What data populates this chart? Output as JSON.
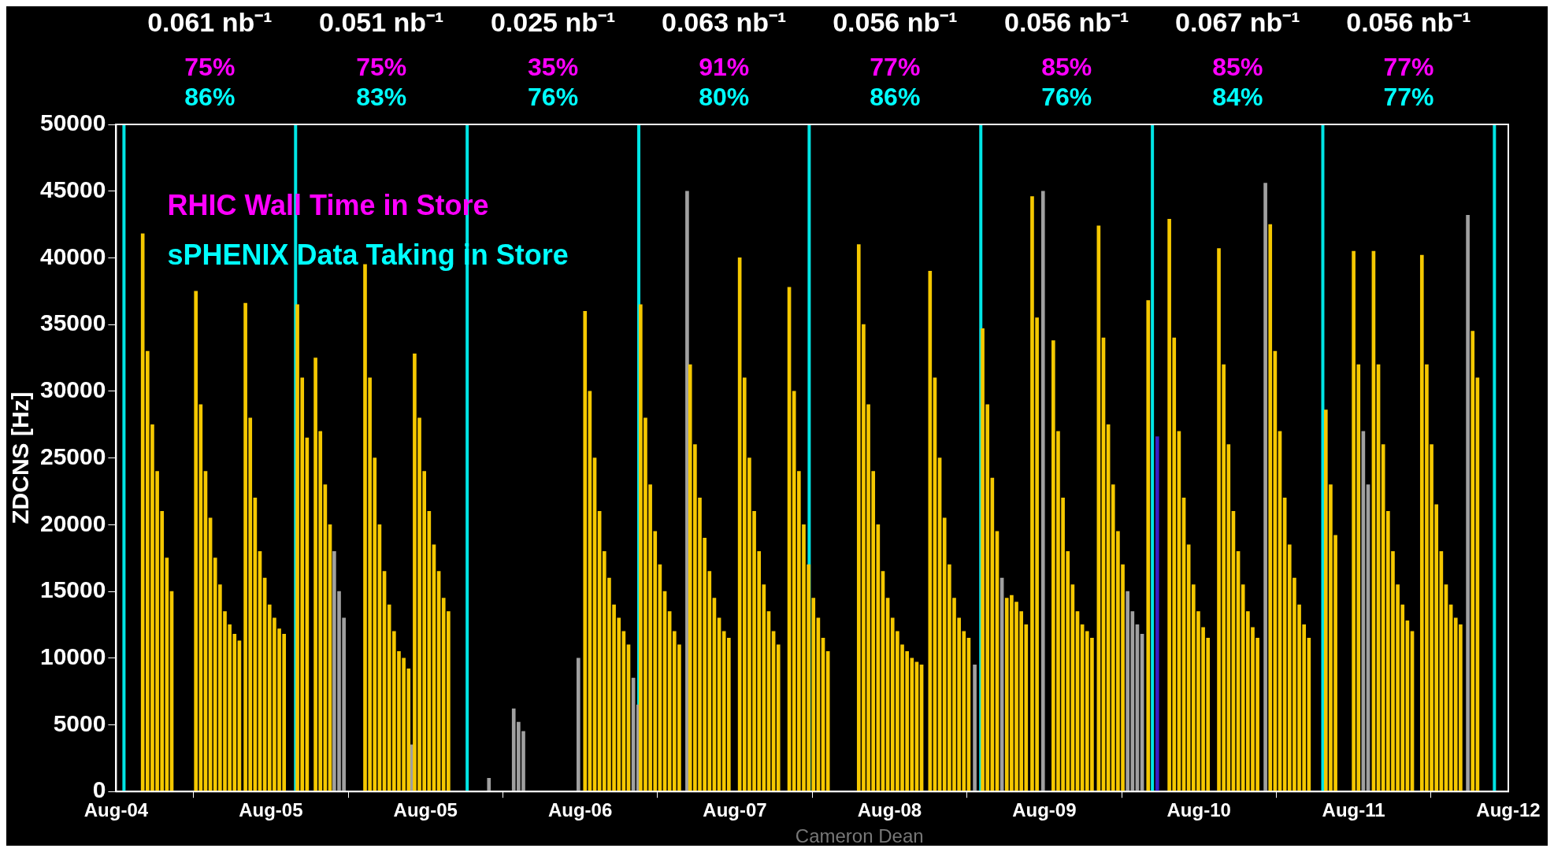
{
  "chart_data": {
    "type": "bar",
    "ylabel": "ZDCNS [Hz]",
    "xlim": [
      "--08-04T03:00",
      "--08-12T03:00"
    ],
    "ylim": [
      0,
      50000
    ],
    "xticks": [
      {
        "value": "--08-04T03:00",
        "label": "Aug-04"
      },
      {
        "value": "--08-05T00:20",
        "label": "Aug-05"
      },
      {
        "value": "--08-05T21:40",
        "label": "Aug-05"
      },
      {
        "value": "--08-06T19:00",
        "label": "Aug-06"
      },
      {
        "value": "--08-07T16:20",
        "label": "Aug-07"
      },
      {
        "value": "--08-08T13:40",
        "label": "Aug-08"
      },
      {
        "value": "--08-09T11:00",
        "label": "Aug-09"
      },
      {
        "value": "--08-10T08:20",
        "label": "Aug-10"
      },
      {
        "value": "--08-11T05:40",
        "label": "Aug-11"
      },
      {
        "value": "--08-12T03:00",
        "label": "Aug-12"
      }
    ],
    "yticks": [
      0,
      5000,
      10000,
      15000,
      20000,
      25000,
      30000,
      35000,
      40000,
      45000,
      50000
    ],
    "grid": false,
    "series": [
      {
        "color": "#f5c800",
        "x": [
          "--08-04T06:40",
          "--08-04T07:20",
          "--08-04T08:00",
          "--08-04T08:40",
          "--08-04T09:20",
          "--08-04T10:00",
          "--08-04T10:40",
          "--08-04T14:00",
          "--08-04T14:40",
          "--08-04T15:20",
          "--08-04T16:00",
          "--08-04T16:40",
          "--08-04T17:20",
          "--08-04T18:00",
          "--08-04T18:40",
          "--08-04T19:20",
          "--08-04T20:00",
          "--08-04T20:50",
          "--08-04T21:30",
          "--08-04T22:10",
          "--08-04T22:50",
          "--08-04T23:30",
          "--08-05T00:10",
          "--08-05T00:50",
          "--08-05T01:30",
          "--08-05T02:10",
          "--08-05T04:00",
          "--08-05T04:40",
          "--08-05T05:20",
          "--08-05T06:30",
          "--08-05T07:10",
          "--08-05T07:50",
          "--08-05T08:30",
          "--08-05T13:20",
          "--08-05T14:00",
          "--08-05T14:40",
          "--08-05T15:20",
          "--08-05T16:00",
          "--08-05T16:40",
          "--08-05T17:20",
          "--08-05T18:00",
          "--08-05T18:40",
          "--08-05T19:20",
          "--08-05T20:10",
          "--08-05T20:50",
          "--08-05T21:30",
          "--08-05T22:10",
          "--08-05T22:50",
          "--08-05T23:30",
          "--08-06T00:10",
          "--08-06T00:50",
          "--08-06T19:40",
          "--08-06T20:20",
          "--08-06T21:00",
          "--08-06T21:40",
          "--08-06T22:20",
          "--08-06T23:00",
          "--08-06T23:40",
          "--08-07T00:20",
          "--08-07T01:00",
          "--08-07T01:40",
          "--08-07T03:20",
          "--08-07T04:00",
          "--08-07T04:40",
          "--08-07T05:20",
          "--08-07T06:00",
          "--08-07T06:40",
          "--08-07T07:20",
          "--08-07T08:00",
          "--08-07T08:40",
          "--08-07T10:10",
          "--08-07T10:50",
          "--08-07T11:30",
          "--08-07T12:10",
          "--08-07T12:50",
          "--08-07T13:30",
          "--08-07T14:10",
          "--08-07T14:50",
          "--08-07T15:30",
          "--08-07T17:00",
          "--08-07T17:40",
          "--08-07T18:20",
          "--08-07T19:00",
          "--08-07T19:40",
          "--08-07T20:20",
          "--08-07T21:00",
          "--08-07T21:40",
          "--08-07T22:20",
          "--08-07T23:50",
          "--08-08T00:30",
          "--08-08T01:10",
          "--08-08T01:50",
          "--08-08T02:30",
          "--08-08T03:10",
          "--08-08T03:50",
          "--08-08T04:30",
          "--08-08T05:10",
          "--08-08T09:25",
          "--08-08T10:05",
          "--08-08T10:45",
          "--08-08T11:25",
          "--08-08T12:05",
          "--08-08T12:45",
          "--08-08T13:25",
          "--08-08T14:05",
          "--08-08T14:45",
          "--08-08T15:25",
          "--08-08T16:05",
          "--08-08T16:45",
          "--08-08T17:25",
          "--08-08T18:05",
          "--08-08T19:15",
          "--08-08T19:55",
          "--08-08T20:35",
          "--08-08T21:15",
          "--08-08T21:55",
          "--08-08T22:35",
          "--08-08T23:15",
          "--08-08T23:55",
          "--08-09T00:35",
          "--08-09T02:30",
          "--08-09T03:10",
          "--08-09T03:50",
          "--08-09T04:30",
          "--08-09T05:50",
          "--08-09T06:30",
          "--08-09T07:10",
          "--08-09T07:50",
          "--08-09T08:30",
          "--08-09T09:20",
          "--08-09T10:00",
          "--08-09T12:15",
          "--08-09T12:55",
          "--08-09T13:35",
          "--08-09T14:15",
          "--08-09T14:55",
          "--08-09T15:35",
          "--08-09T16:15",
          "--08-09T16:55",
          "--08-09T17:35",
          "--08-09T18:30",
          "--08-09T19:10",
          "--08-09T19:50",
          "--08-09T20:30",
          "--08-09T21:10",
          "--08-09T21:50",
          "--08-10T01:20",
          "--08-10T04:15",
          "--08-10T04:55",
          "--08-10T05:35",
          "--08-10T06:15",
          "--08-10T06:55",
          "--08-10T07:35",
          "--08-10T08:15",
          "--08-10T08:55",
          "--08-10T09:35",
          "--08-10T11:05",
          "--08-10T11:45",
          "--08-10T12:25",
          "--08-10T13:05",
          "--08-10T13:45",
          "--08-10T14:25",
          "--08-10T15:05",
          "--08-10T15:45",
          "--08-10T16:25",
          "--08-10T18:10",
          "--08-10T18:50",
          "--08-10T19:30",
          "--08-10T20:10",
          "--08-10T20:50",
          "--08-10T21:30",
          "--08-10T22:10",
          "--08-10T22:50",
          "--08-10T23:30",
          "--08-11T01:50",
          "--08-11T02:30",
          "--08-11T03:10",
          "--08-11T05:40",
          "--08-11T06:20",
          "--08-11T08:25",
          "--08-11T09:05",
          "--08-11T09:45",
          "--08-11T10:25",
          "--08-11T11:05",
          "--08-11T11:45",
          "--08-11T12:25",
          "--08-11T13:05",
          "--08-11T13:45",
          "--08-11T15:05",
          "--08-11T15:45",
          "--08-11T16:25",
          "--08-11T17:05",
          "--08-11T17:45",
          "--08-11T18:25",
          "--08-11T19:05",
          "--08-11T19:45",
          "--08-11T20:25",
          "--08-11T22:05",
          "--08-11T22:45"
        ],
        "values": [
          41800,
          33000,
          27500,
          24000,
          21000,
          17500,
          15000,
          37500,
          29000,
          24000,
          20500,
          17500,
          15500,
          13500,
          12500,
          11800,
          11300,
          36600,
          28000,
          22000,
          18000,
          16000,
          14000,
          13000,
          12200,
          11800,
          36500,
          31000,
          26500,
          32500,
          27000,
          23000,
          20000,
          39500,
          31000,
          25000,
          20000,
          16500,
          14000,
          12000,
          10500,
          10000,
          9200,
          32800,
          28000,
          24000,
          21000,
          18500,
          16500,
          14500,
          13500,
          36000,
          30000,
          25000,
          21000,
          18000,
          16000,
          14000,
          13000,
          12000,
          11000,
          36500,
          28000,
          23000,
          19500,
          17000,
          15000,
          13500,
          12000,
          11000,
          32000,
          26000,
          22000,
          19000,
          16500,
          14500,
          13000,
          12000,
          11500,
          40000,
          31000,
          25000,
          21000,
          18000,
          15500,
          13500,
          12000,
          11000,
          37800,
          30000,
          24000,
          20000,
          17000,
          14500,
          13000,
          11500,
          10500,
          41000,
          35000,
          29000,
          24000,
          20000,
          16500,
          14500,
          13000,
          12000,
          11000,
          10500,
          10000,
          9700,
          9500,
          39000,
          31000,
          25000,
          20500,
          17000,
          14500,
          13000,
          12000,
          11500,
          34700,
          29000,
          23500,
          19500,
          14500,
          14700,
          14200,
          13500,
          12500,
          44600,
          35500,
          33800,
          27000,
          22000,
          18000,
          15500,
          13500,
          12500,
          12000,
          11500,
          42400,
          34000,
          27500,
          23000,
          19500,
          17000,
          36800,
          42900,
          34000,
          27000,
          22000,
          18500,
          15500,
          13500,
          12300,
          11500,
          40700,
          32000,
          26000,
          21000,
          18000,
          15500,
          13500,
          12300,
          11500,
          42500,
          33000,
          27000,
          22000,
          18500,
          16000,
          14000,
          12500,
          11500,
          28600,
          23000,
          19200,
          40500,
          32000,
          40500,
          32000,
          26000,
          21000,
          18000,
          15500,
          14000,
          12800,
          12000,
          40200,
          32000,
          26000,
          21500,
          18000,
          15500,
          14000,
          13000,
          12500,
          34500,
          31000
        ]
      },
      {
        "color": "#a0a0a0",
        "x": [
          "--08-05T09:05",
          "--08-05T09:45",
          "--08-05T10:25",
          "--08-05T19:45",
          "--08-06T06:25",
          "--08-06T09:50",
          "--08-06T10:30",
          "--08-06T11:10",
          "--08-06T18:45",
          "--08-07T02:20",
          "--08-07T03:00",
          "--08-07T09:45",
          "--08-09T01:25",
          "--08-09T05:10",
          "--08-09T10:50",
          "--08-09T22:30",
          "--08-09T23:10",
          "--08-09T23:50",
          "--08-10T00:30",
          "--08-10T17:30",
          "--08-11T07:00",
          "--08-11T07:40",
          "--08-11T21:25"
        ],
        "values": [
          18000,
          15000,
          13000,
          3500,
          1000,
          6200,
          5200,
          4500,
          10000,
          8500,
          6500,
          45000,
          9500,
          16000,
          45000,
          15000,
          13500,
          12500,
          11800,
          45600,
          27000,
          23000,
          43200
        ]
      },
      {
        "color": "#3a1fc8",
        "x": [
          "--08-10T02:35"
        ],
        "values": [
          26600
        ]
      }
    ],
    "ref_lines": [
      {
        "axis": "x",
        "value": "--08-04T04:05",
        "color": "#00e5e5"
      },
      {
        "axis": "x",
        "value": "--08-05T03:45",
        "color": "#00e5e5"
      },
      {
        "axis": "x",
        "value": "--08-06T03:25",
        "color": "#00e5e5"
      },
      {
        "axis": "x",
        "value": "--08-07T03:05",
        "color": "#00e5e5"
      },
      {
        "axis": "x",
        "value": "--08-08T02:35",
        "color": "#00e5e5"
      },
      {
        "axis": "x",
        "value": "--08-09T02:15",
        "color": "#00e5e5"
      },
      {
        "axis": "x",
        "value": "--08-10T01:55",
        "color": "#00e5e5"
      },
      {
        "axis": "x",
        "value": "--08-11T01:25",
        "color": "#00e5e5"
      },
      {
        "axis": "x",
        "value": "--08-12T01:05",
        "color": "#00e5e5"
      }
    ],
    "annotations": [
      "0.061 nb⁻¹",
      "0.051 nb⁻¹",
      "0.025 nb⁻¹",
      "0.063 nb⁻¹",
      "0.056 nb⁻¹",
      "0.056 nb⁻¹",
      "0.067 nb⁻¹",
      "0.056 nb⁻¹",
      "75%",
      "75%",
      "35%",
      "91%",
      "77%",
      "85%",
      "85%",
      "77%",
      "86%",
      "83%",
      "76%",
      "80%",
      "86%",
      "76%",
      "84%",
      "77%",
      "RHIC Wall Time in Store",
      "sPHENIX Data Taking in Store",
      "Cameron Dean"
    ]
  }
}
